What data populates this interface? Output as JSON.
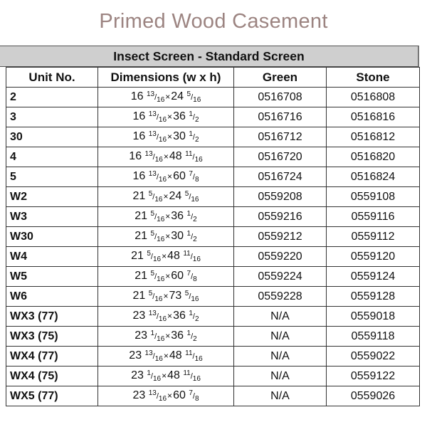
{
  "title": "Primed Wood Casement",
  "table": {
    "section_title": "Insect Screen - Standard Screen",
    "headers": [
      "Unit No.",
      "Dimensions (w x h)",
      "Green",
      "Stone"
    ],
    "rows": [
      {
        "unit": "2",
        "w": "16",
        "w_num": "13",
        "w_den": "16",
        "h": "24",
        "h_num": "5",
        "h_den": "16",
        "green": "0516708",
        "stone": "0516808"
      },
      {
        "unit": "3",
        "w": "16",
        "w_num": "13",
        "w_den": "16",
        "h": "36",
        "h_num": "1",
        "h_den": "2",
        "green": "0516716",
        "stone": "0516816"
      },
      {
        "unit": "30",
        "w": "16",
        "w_num": "13",
        "w_den": "16",
        "h": "30",
        "h_num": "1",
        "h_den": "2",
        "green": "0516712",
        "stone": "0516812"
      },
      {
        "unit": "4",
        "w": "16",
        "w_num": "13",
        "w_den": "16",
        "h": "48",
        "h_num": "11",
        "h_den": "16",
        "green": "0516720",
        "stone": "0516820"
      },
      {
        "unit": "5",
        "w": "16",
        "w_num": "13",
        "w_den": "16",
        "h": "60",
        "h_num": "7",
        "h_den": "8",
        "green": "0516724",
        "stone": "0516824"
      },
      {
        "unit": "W2",
        "w": "21",
        "w_num": "5",
        "w_den": "16",
        "h": "24",
        "h_num": "5",
        "h_den": "16",
        "green": "0559208",
        "stone": "0559108"
      },
      {
        "unit": "W3",
        "w": "21",
        "w_num": "5",
        "w_den": "16",
        "h": "36",
        "h_num": "1",
        "h_den": "2",
        "green": "0559216",
        "stone": "0559116"
      },
      {
        "unit": "W30",
        "w": "21",
        "w_num": "5",
        "w_den": "16",
        "h": "30",
        "h_num": "1",
        "h_den": "2",
        "green": "0559212",
        "stone": "0559112"
      },
      {
        "unit": "W4",
        "w": "21",
        "w_num": "5",
        "w_den": "16",
        "h": "48",
        "h_num": "11",
        "h_den": "16",
        "green": "0559220",
        "stone": "0559120"
      },
      {
        "unit": "W5",
        "w": "21",
        "w_num": "5",
        "w_den": "16",
        "h": "60",
        "h_num": "7",
        "h_den": "8",
        "green": "0559224",
        "stone": "0559124"
      },
      {
        "unit": "W6",
        "w": "21",
        "w_num": "5",
        "w_den": "16",
        "h": "73",
        "h_num": "5",
        "h_den": "16",
        "green": "0559228",
        "stone": "0559128"
      },
      {
        "unit": "WX3 (77)",
        "w": "23",
        "w_num": "13",
        "w_den": "16",
        "h": "36",
        "h_num": "1",
        "h_den": "2",
        "green": "N/A",
        "stone": "0559018"
      },
      {
        "unit": "WX3 (75)",
        "w": "23",
        "w_num": "1",
        "w_den": "16",
        "h": "36",
        "h_num": "1",
        "h_den": "2",
        "green": "N/A",
        "stone": "0559118"
      },
      {
        "unit": "WX4 (77)",
        "w": "23",
        "w_num": "13",
        "w_den": "16",
        "h": "48",
        "h_num": "11",
        "h_den": "16",
        "green": "N/A",
        "stone": "0559022"
      },
      {
        "unit": "WX4 (75)",
        "w": "23",
        "w_num": "1",
        "w_den": "16",
        "h": "48",
        "h_num": "11",
        "h_den": "16",
        "green": "N/A",
        "stone": "0559122"
      },
      {
        "unit": "WX5 (77)",
        "w": "23",
        "w_num": "13",
        "w_den": "16",
        "h": "60",
        "h_num": "7",
        "h_den": "8",
        "green": "N/A",
        "stone": "0559026"
      }
    ],
    "times_sign": "×"
  }
}
